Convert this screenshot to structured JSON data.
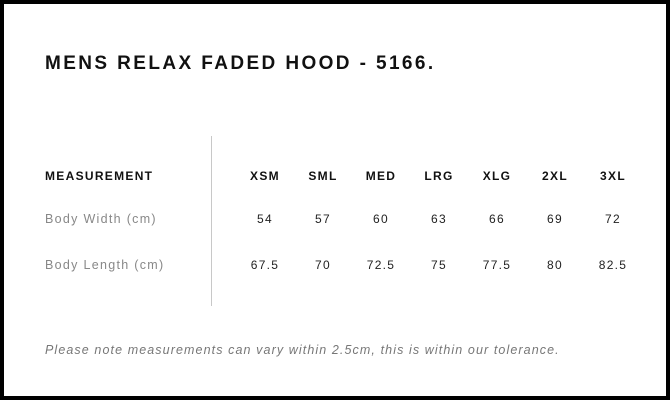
{
  "title": "MENS RELAX FADED HOOD - 5166.",
  "table": {
    "header_label": "MEASUREMENT",
    "sizes": [
      "XSM",
      "SML",
      "MED",
      "LRG",
      "XLG",
      "2XL",
      "3XL"
    ],
    "rows": [
      {
        "label": "Body Width (cm)",
        "values": [
          "54",
          "57",
          "60",
          "63",
          "66",
          "69",
          "72"
        ]
      },
      {
        "label": "Body Length (cm)",
        "values": [
          "67.5",
          "70",
          "72.5",
          "75",
          "77.5",
          "80",
          "82.5"
        ]
      }
    ]
  },
  "note": "Please note measurements can vary within 2.5cm, this is within our tolerance."
}
